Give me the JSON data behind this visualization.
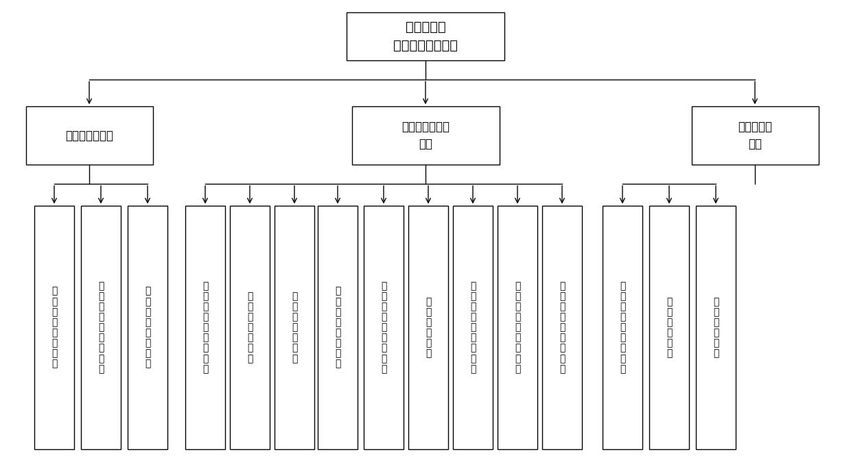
{
  "root_text": "直喷汽油机\n高压燃油系统故障",
  "l1_nodes": [
    {
      "text": "仪表显示的故障",
      "col": 0
    },
    {
      "text": "动力受限行驶的\n故障",
      "col": 1
    },
    {
      "text": "停车维修的\n故障",
      "col": 2
    }
  ],
  "l2_nodes": [
    {
      "text": "低\n压\n油\n泵\n对\n地\n短\n路",
      "parent": 0
    },
    {
      "text": "高\n压\n喷\n油\n器\n接\n触\n不\n良",
      "parent": 0
    },
    {
      "text": "高\n压\n油\n泵\n接\n触\n不\n良",
      "parent": 0
    },
    {
      "text": "高\n压\n喷\n油\n器\n对\n地\n短\n路",
      "parent": 1
    },
    {
      "text": "高\n压\n喷\n油\n器\n过\n流",
      "parent": 1
    },
    {
      "text": "高\n压\n喷\n油\n器\n开\n路",
      "parent": 1
    },
    {
      "text": "高\n压\n油\n泵\n对\n地\n短\n路",
      "parent": 1
    },
    {
      "text": "高\n压\n油\n泵\n对\n电\n源\n短\n路",
      "parent": 1
    },
    {
      "text": "高\n压\n油\n泵\n开\n路",
      "parent": 1
    },
    {
      "text": "轨\n压\n传\n感\n器\n电\n压\n过\n高",
      "parent": 1
    },
    {
      "text": "轨\n压\n传\n感\n器\n电\n压\n过\n低",
      "parent": 1
    },
    {
      "text": "轨\n压\n传\n感\n器\n信\n号\n异\n常",
      "parent": 1
    },
    {
      "text": "低\n压\n油\n泵\n对\n电\n源\n短\n路",
      "parent": 2
    },
    {
      "text": "低\n压\n油\n泵\n开\n路",
      "parent": 2
    },
    {
      "text": "高\n压\n油\n轨\n泄\n露",
      "parent": 2
    }
  ],
  "bg_color": "#ffffff",
  "box_color": "#ffffff",
  "border_color": "#000000",
  "text_color": "#000000"
}
